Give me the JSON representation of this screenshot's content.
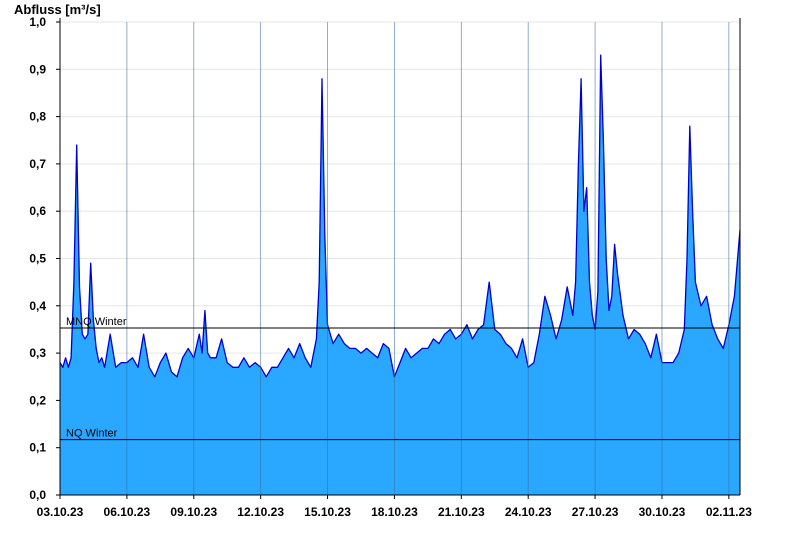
{
  "chart_data": {
    "type": "area",
    "ylabel": "Abfluss [m³/s]",
    "ylim": [
      0,
      1.0
    ],
    "yticks": [
      0,
      0.1,
      0.2,
      0.3,
      0.4,
      0.5,
      0.6,
      0.7,
      0.8,
      0.9,
      1.0
    ],
    "ytick_labels": [
      "0,0",
      "0,1",
      "0,2",
      "0,3",
      "0,4",
      "0,5",
      "0,6",
      "0,7",
      "0,8",
      "0,9",
      "1,0"
    ],
    "xlim": [
      "2023-10-03 00:00",
      "2023-11-02 12:00"
    ],
    "xtick_labels": [
      "03.10.23",
      "06.10.23",
      "09.10.23",
      "12.10.23",
      "15.10.23",
      "18.10.23",
      "21.10.23",
      "24.10.23",
      "27.10.23",
      "30.10.23",
      "02.11.23"
    ],
    "xtick_dates": [
      "2023-10-03",
      "2023-10-06",
      "2023-10-09",
      "2023-10-12",
      "2023-10-15",
      "2023-10-18",
      "2023-10-21",
      "2023-10-24",
      "2023-10-27",
      "2023-10-30",
      "2023-11-02"
    ],
    "grid": true,
    "reference_lines": [
      {
        "label": "MNQ Winter",
        "value": 0.353
      },
      {
        "label": "NQ Winter",
        "value": 0.117
      }
    ],
    "colors": {
      "fill": "#2aa7ff",
      "line": "#0000cc",
      "grid": "#e6e6e6",
      "vgrid": "#3a6fa0"
    },
    "series": [
      {
        "x": [
          "2023-10-03 00:00",
          "2023-10-03 03:00",
          "2023-10-03 06:00",
          "2023-10-03 09:00",
          "2023-10-03 12:00",
          "2023-10-03 15:00",
          "2023-10-03 18:00",
          "2023-10-03 21:00",
          "2023-10-04 00:00",
          "2023-10-04 03:00",
          "2023-10-04 06:00",
          "2023-10-04 09:00",
          "2023-10-04 12:00",
          "2023-10-04 15:00",
          "2023-10-04 18:00",
          "2023-10-04 21:00",
          "2023-10-05 00:00",
          "2023-10-05 06:00",
          "2023-10-05 12:00",
          "2023-10-05 18:00",
          "2023-10-06 00:00",
          "2023-10-06 06:00",
          "2023-10-06 12:00",
          "2023-10-06 18:00",
          "2023-10-07 00:00",
          "2023-10-07 06:00",
          "2023-10-07 12:00",
          "2023-10-07 18:00",
          "2023-10-08 00:00",
          "2023-10-08 06:00",
          "2023-10-08 12:00",
          "2023-10-08 18:00",
          "2023-10-09 00:00",
          "2023-10-09 06:00",
          "2023-10-09 09:00",
          "2023-10-09 12:00",
          "2023-10-09 15:00",
          "2023-10-09 18:00",
          "2023-10-10 00:00",
          "2023-10-10 06:00",
          "2023-10-10 12:00",
          "2023-10-10 18:00",
          "2023-10-11 00:00",
          "2023-10-11 06:00",
          "2023-10-11 12:00",
          "2023-10-11 18:00",
          "2023-10-12 00:00",
          "2023-10-12 06:00",
          "2023-10-12 12:00",
          "2023-10-12 18:00",
          "2023-10-13 00:00",
          "2023-10-13 06:00",
          "2023-10-13 12:00",
          "2023-10-13 18:00",
          "2023-10-14 00:00",
          "2023-10-14 06:00",
          "2023-10-14 12:00",
          "2023-10-14 15:00",
          "2023-10-14 18:00",
          "2023-10-14 21:00",
          "2023-10-15 00:00",
          "2023-10-15 03:00",
          "2023-10-15 06:00",
          "2023-10-15 12:00",
          "2023-10-15 18:00",
          "2023-10-16 00:00",
          "2023-10-16 06:00",
          "2023-10-16 12:00",
          "2023-10-16 18:00",
          "2023-10-17 00:00",
          "2023-10-17 06:00",
          "2023-10-17 12:00",
          "2023-10-17 18:00",
          "2023-10-18 00:00",
          "2023-10-18 06:00",
          "2023-10-18 12:00",
          "2023-10-18 18:00",
          "2023-10-19 00:00",
          "2023-10-19 06:00",
          "2023-10-19 12:00",
          "2023-10-19 18:00",
          "2023-10-20 00:00",
          "2023-10-20 06:00",
          "2023-10-20 12:00",
          "2023-10-20 18:00",
          "2023-10-21 00:00",
          "2023-10-21 06:00",
          "2023-10-21 12:00",
          "2023-10-21 18:00",
          "2023-10-22 00:00",
          "2023-10-22 06:00",
          "2023-10-22 12:00",
          "2023-10-22 18:00",
          "2023-10-23 00:00",
          "2023-10-23 06:00",
          "2023-10-23 12:00",
          "2023-10-23 18:00",
          "2023-10-24 00:00",
          "2023-10-24 06:00",
          "2023-10-24 12:00",
          "2023-10-24 18:00",
          "2023-10-25 00:00",
          "2023-10-25 06:00",
          "2023-10-25 12:00",
          "2023-10-25 18:00",
          "2023-10-26 00:00",
          "2023-10-26 03:00",
          "2023-10-26 06:00",
          "2023-10-26 09:00",
          "2023-10-26 12:00",
          "2023-10-26 15:00",
          "2023-10-26 18:00",
          "2023-10-26 21:00",
          "2023-10-27 00:00",
          "2023-10-27 03:00",
          "2023-10-27 06:00",
          "2023-10-27 09:00",
          "2023-10-27 12:00",
          "2023-10-27 15:00",
          "2023-10-27 18:00",
          "2023-10-27 21:00",
          "2023-10-28 00:00",
          "2023-10-28 06:00",
          "2023-10-28 12:00",
          "2023-10-28 18:00",
          "2023-10-29 00:00",
          "2023-10-29 06:00",
          "2023-10-29 12:00",
          "2023-10-29 18:00",
          "2023-10-30 00:00",
          "2023-10-30 06:00",
          "2023-10-30 12:00",
          "2023-10-30 18:00",
          "2023-10-31 00:00",
          "2023-10-31 03:00",
          "2023-10-31 06:00",
          "2023-10-31 09:00",
          "2023-10-31 12:00",
          "2023-10-31 18:00",
          "2023-11-01 00:00",
          "2023-11-01 06:00",
          "2023-11-01 12:00",
          "2023-11-01 18:00",
          "2023-11-02 00:00",
          "2023-11-02 06:00",
          "2023-11-02 12:00"
        ],
        "values": [
          0.28,
          0.27,
          0.29,
          0.27,
          0.29,
          0.45,
          0.74,
          0.44,
          0.34,
          0.33,
          0.34,
          0.49,
          0.37,
          0.31,
          0.28,
          0.29,
          0.27,
          0.34,
          0.27,
          0.28,
          0.28,
          0.29,
          0.27,
          0.34,
          0.27,
          0.25,
          0.28,
          0.3,
          0.26,
          0.25,
          0.29,
          0.31,
          0.29,
          0.34,
          0.3,
          0.39,
          0.3,
          0.29,
          0.29,
          0.33,
          0.28,
          0.27,
          0.27,
          0.29,
          0.27,
          0.28,
          0.27,
          0.25,
          0.27,
          0.27,
          0.29,
          0.31,
          0.29,
          0.32,
          0.29,
          0.27,
          0.33,
          0.45,
          0.88,
          0.55,
          0.36,
          0.34,
          0.32,
          0.34,
          0.32,
          0.31,
          0.31,
          0.3,
          0.31,
          0.3,
          0.29,
          0.32,
          0.31,
          0.25,
          0.28,
          0.31,
          0.29,
          0.3,
          0.31,
          0.31,
          0.33,
          0.32,
          0.34,
          0.35,
          0.33,
          0.34,
          0.36,
          0.33,
          0.35,
          0.36,
          0.45,
          0.35,
          0.34,
          0.32,
          0.31,
          0.29,
          0.33,
          0.27,
          0.28,
          0.34,
          0.42,
          0.38,
          0.33,
          0.37,
          0.44,
          0.38,
          0.45,
          0.7,
          0.88,
          0.6,
          0.65,
          0.45,
          0.38,
          0.35,
          0.43,
          0.93,
          0.75,
          0.5,
          0.39,
          0.42,
          0.53,
          0.47,
          0.38,
          0.33,
          0.35,
          0.34,
          0.32,
          0.29,
          0.34,
          0.28,
          0.28,
          0.28,
          0.3,
          0.35,
          0.5,
          0.78,
          0.6,
          0.45,
          0.4,
          0.42,
          0.36,
          0.33,
          0.31,
          0.36,
          0.42,
          0.56
        ]
      }
    ]
  }
}
